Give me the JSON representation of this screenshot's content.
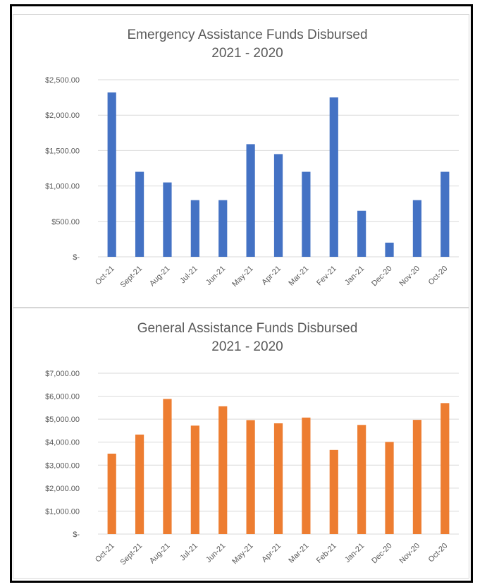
{
  "colors": {
    "series1": "#4472C4",
    "series2": "#ED7D31",
    "grid": "#d9d9d9",
    "text": "#595959"
  },
  "chart_data": [
    {
      "type": "bar",
      "title": "Emergency Assistance Funds Disbursed",
      "subtitle": "2021 - 2020",
      "categories": [
        "Oct-21",
        "Sept-21",
        "Aug-21",
        "Jul-21",
        "Jun-21",
        "May-21",
        "Apr-21",
        "Mar-21",
        "Fev-21",
        "Jan-21",
        "Dec-20",
        "Nov-20",
        "Oct-20"
      ],
      "values": [
        2320,
        1200,
        1050,
        800,
        800,
        1590,
        1450,
        1200,
        2250,
        650,
        200,
        800,
        1200
      ],
      "ylim": [
        0,
        2500
      ],
      "yticks": [
        0,
        500,
        1000,
        1500,
        2000,
        2500
      ],
      "ytick_labels": [
        "$-",
        "$500.00",
        "$1,000.00",
        "$1,500.00",
        "$2,000.00",
        "$2,500.00"
      ],
      "grid": true,
      "color": "#4472C4"
    },
    {
      "type": "bar",
      "title": "General Assistance Funds Disbursed",
      "subtitle": "2021 - 2020",
      "categories": [
        "Oct-21",
        "Sept-21",
        "Aug-21",
        "Jul-21",
        "Jun-21",
        "May-21",
        "Apr-21",
        "Mar-21",
        "Feb-21",
        "Jan-21",
        "Dec-20",
        "Nov-20",
        "Oct-20"
      ],
      "values": [
        3500,
        4330,
        5880,
        4720,
        5560,
        4960,
        4820,
        5070,
        3660,
        4750,
        4010,
        4970,
        5700
      ],
      "ylim": [
        0,
        7000
      ],
      "yticks": [
        0,
        1000,
        2000,
        3000,
        4000,
        5000,
        6000,
        7000
      ],
      "ytick_labels": [
        "$-",
        "$1,000.00",
        "$2,000.00",
        "$3,000.00",
        "$4,000.00",
        "$5,000.00",
        "$6,000.00",
        "$7,000.00"
      ],
      "grid": true,
      "color": "#ED7D31"
    }
  ]
}
